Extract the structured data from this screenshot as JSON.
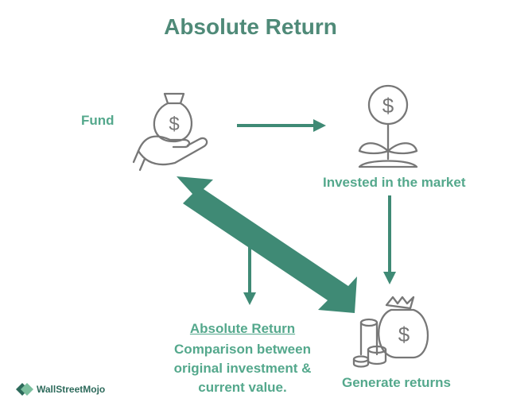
{
  "title": "Absolute Return",
  "nodes": {
    "fund": "Fund",
    "invested": "Invested in the market",
    "generate": "Generate returns"
  },
  "note": {
    "heading": "Absolute Return",
    "lines": [
      "Comparison between",
      "original investment &",
      "current value."
    ]
  },
  "brand": {
    "name": "WallStreetMojo"
  },
  "colors": {
    "title": "#4f8a78",
    "label": "#54a88c",
    "arrow": "#3f8a75",
    "icon": "#777777"
  },
  "icons": {
    "fund": "money-bag-hand-icon",
    "invested": "dollar-plant-icon",
    "generate": "coins-money-bag-icon"
  }
}
